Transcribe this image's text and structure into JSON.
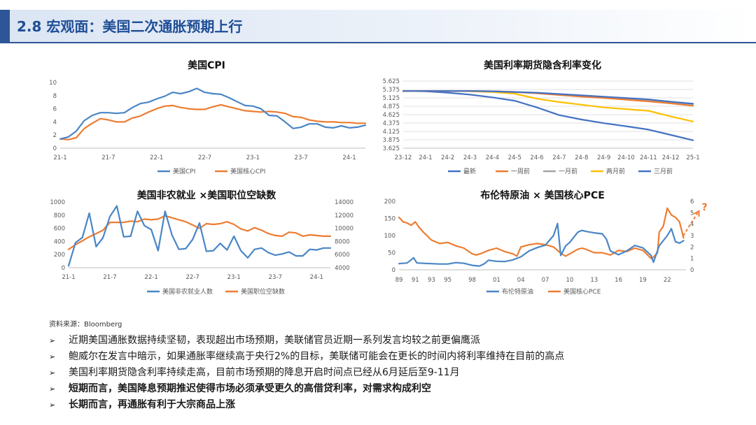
{
  "header": {
    "title": "2.8 宏观面：美国二次通胀预期上行",
    "accent": "#2e5597"
  },
  "colors": {
    "blue": "#4a86c5",
    "orange": "#ed7d31",
    "gray": "#a5a5a5",
    "yellow": "#ffc000",
    "navy": "#4472c4"
  },
  "chart_data": [
    {
      "type": "line",
      "title": "美国CPI",
      "x": [
        "2021-01",
        "2021-02",
        "2021-03",
        "2021-04",
        "2021-05",
        "2021-06",
        "2021-07",
        "2021-08",
        "2021-09",
        "2021-10",
        "2021-11",
        "2021-12",
        "2022-01",
        "2022-02",
        "2022-03",
        "2022-04",
        "2022-05",
        "2022-06",
        "2022-07",
        "2022-08",
        "2022-09",
        "2022-10",
        "2022-11",
        "2022-12",
        "2023-01",
        "2023-02",
        "2023-03",
        "2023-04",
        "2023-05",
        "2023-06",
        "2023-07",
        "2023-08",
        "2023-09",
        "2023-10",
        "2023-11",
        "2023-12",
        "2024-01",
        "2024-02",
        "2024-03"
      ],
      "xticks": [
        {
          "x": "2021-01",
          "label": "21-1"
        },
        {
          "x": "2021-07",
          "label": "21-7"
        },
        {
          "x": "2022-01",
          "label": "22-1"
        },
        {
          "x": "2022-07",
          "label": "22-7"
        },
        {
          "x": "2023-01",
          "label": "23-1"
        },
        {
          "x": "2023-07",
          "label": "23-7"
        },
        {
          "x": "2024-01",
          "label": "24-1"
        }
      ],
      "ylim": [
        0,
        10
      ],
      "yticks": [
        "0",
        "2",
        "4",
        "6",
        "8",
        "10"
      ],
      "series": [
        {
          "name": "美国CPI",
          "color": "#4a86c5",
          "values": [
            1.4,
            1.7,
            2.6,
            4.2,
            5.0,
            5.4,
            5.4,
            5.3,
            5.4,
            6.2,
            6.8,
            7.0,
            7.5,
            7.9,
            8.5,
            8.3,
            8.6,
            9.1,
            8.5,
            8.3,
            8.2,
            7.7,
            7.1,
            6.5,
            6.4,
            6.0,
            5.0,
            4.9,
            4.0,
            3.0,
            3.2,
            3.7,
            3.7,
            3.2,
            3.1,
            3.4,
            3.1,
            3.2,
            3.5
          ]
        },
        {
          "name": "美国核心CPI",
          "color": "#ed7d31",
          "values": [
            1.4,
            1.3,
            1.6,
            3.0,
            3.8,
            4.5,
            4.3,
            4.0,
            4.0,
            4.6,
            4.9,
            5.5,
            6.0,
            6.4,
            6.5,
            6.2,
            6.0,
            5.9,
            5.9,
            6.3,
            6.6,
            6.3,
            6.0,
            5.7,
            5.6,
            5.5,
            5.6,
            5.5,
            5.3,
            4.8,
            4.7,
            4.3,
            4.1,
            4.0,
            4.0,
            3.9,
            3.9,
            3.8,
            3.8
          ]
        }
      ]
    },
    {
      "type": "line",
      "title": "美国利率期货隐含利率变化",
      "x": [
        "23-12",
        "24-1",
        "24-2",
        "24-3",
        "24-4",
        "24-5",
        "24-6",
        "24-7",
        "24-8",
        "24-9",
        "24-10",
        "24-11",
        "24-12",
        "25-1"
      ],
      "ylim": [
        3.625,
        5.625
      ],
      "yticks": [
        "3.625",
        "3.875",
        "4.125",
        "4.375",
        "4.625",
        "4.875",
        "5.125",
        "5.375",
        "5.625"
      ],
      "series": [
        {
          "name": "最新",
          "color": "#4472c4",
          "values": [
            5.33,
            5.33,
            5.33,
            5.33,
            5.32,
            5.3,
            5.28,
            5.24,
            5.2,
            5.16,
            5.12,
            5.08,
            5.01,
            4.95
          ]
        },
        {
          "name": "一周前",
          "color": "#ed7d31",
          "values": [
            5.33,
            5.33,
            5.33,
            5.33,
            5.32,
            5.3,
            5.26,
            5.21,
            5.16,
            5.12,
            5.07,
            5.02,
            4.96,
            4.89
          ]
        },
        {
          "name": "一月前",
          "color": "#a5a5a5",
          "values": [
            5.33,
            5.33,
            5.33,
            5.33,
            5.32,
            5.3,
            5.27,
            5.22,
            5.18,
            5.14,
            5.1,
            5.06,
            5.0,
            4.94
          ]
        },
        {
          "name": "两月前",
          "color": "#ffc000",
          "values": [
            5.33,
            5.33,
            5.33,
            5.32,
            5.3,
            5.25,
            5.1,
            5.0,
            4.92,
            4.84,
            4.79,
            4.74,
            4.57,
            4.42
          ]
        },
        {
          "name": "三月前",
          "color": "#4472c4",
          "values": [
            5.33,
            5.32,
            5.28,
            5.22,
            5.14,
            5.04,
            4.84,
            4.61,
            4.48,
            4.37,
            4.28,
            4.18,
            4.02,
            3.86
          ]
        }
      ]
    },
    {
      "type": "line",
      "title": "美国非农就业 ×美国职位空缺数",
      "x": [
        "2021-01",
        "2021-02",
        "2021-03",
        "2021-04",
        "2021-05",
        "2021-06",
        "2021-07",
        "2021-08",
        "2021-09",
        "2021-10",
        "2021-11",
        "2021-12",
        "2022-01",
        "2022-02",
        "2022-03",
        "2022-04",
        "2022-05",
        "2022-06",
        "2022-07",
        "2022-08",
        "2022-09",
        "2022-10",
        "2022-11",
        "2022-12",
        "2023-01",
        "2023-02",
        "2023-03",
        "2023-04",
        "2023-05",
        "2023-06",
        "2023-07",
        "2023-08",
        "2023-09",
        "2023-10",
        "2023-11",
        "2023-12",
        "2024-01",
        "2024-02",
        "2024-03"
      ],
      "xticks": [
        {
          "x": "2021-01",
          "label": "21-1"
        },
        {
          "x": "2021-07",
          "label": "21-7"
        },
        {
          "x": "2022-01",
          "label": "22-1"
        },
        {
          "x": "2022-07",
          "label": "22-7"
        },
        {
          "x": "2023-01",
          "label": "23-1"
        },
        {
          "x": "2023-07",
          "label": "23-7"
        },
        {
          "x": "2024-01",
          "label": "24-1"
        }
      ],
      "ylim": [
        0,
        1000
      ],
      "yticks": [
        "0",
        "200",
        "400",
        "600",
        "800",
        "1000"
      ],
      "ylim_right": [
        4000,
        14000
      ],
      "yticks_right": [
        "4000",
        "6000",
        "8000",
        "10000",
        "12000",
        "14000"
      ],
      "series": [
        {
          "name": "美国非农就业人数",
          "color": "#4a86c5",
          "axis": "left",
          "values": [
            30,
            380,
            460,
            830,
            320,
            460,
            780,
            940,
            470,
            480,
            860,
            640,
            580,
            260,
            860,
            500,
            280,
            290,
            430,
            680,
            250,
            260,
            370,
            270,
            480,
            260,
            150,
            280,
            300,
            230,
            190,
            210,
            240,
            180,
            180,
            280,
            270,
            300,
            300
          ]
        },
        {
          "name": "美国职位空缺数",
          "color": "#ed7d31",
          "axis": "right",
          "values": [
            6800,
            7500,
            8100,
            8700,
            9200,
            9700,
            10900,
            10900,
            10900,
            11100,
            11000,
            11400,
            11300,
            11400,
            11900,
            11600,
            11300,
            11000,
            10500,
            10000,
            10700,
            10600,
            10700,
            11000,
            10600,
            9900,
            9600,
            10100,
            9700,
            9200,
            8900,
            8800,
            9400,
            9300,
            8800,
            9000,
            8900,
            8800,
            8800
          ]
        }
      ]
    },
    {
      "type": "line",
      "title": "布伦特原油 × 美国核心PCE",
      "xticks": [
        "89",
        "91",
        "93",
        "95",
        "98",
        "01",
        "04",
        "07",
        "10",
        "13",
        "16",
        "19",
        "22"
      ],
      "ylim": [
        0,
        200
      ],
      "yticks": [
        "0",
        "50",
        "100",
        "150",
        "200"
      ],
      "ylim_right": [
        0,
        6
      ],
      "yticks_right": [
        "0",
        "1",
        "2",
        "3",
        "4",
        "5",
        "6"
      ],
      "annotation": "?",
      "series": [
        {
          "name": "布伦特原油",
          "color": "#4a86c5",
          "axis": "left",
          "x": [
            1989,
            1990,
            1990.8,
            1991.2,
            1992,
            1993,
            1994,
            1995,
            1996,
            1997,
            1998,
            1998.9,
            1999.5,
            2000,
            2001,
            2002,
            2003,
            2004,
            2005,
            2006,
            2007,
            2008.0,
            2008.5,
            2008.9,
            2009.5,
            2010,
            2011,
            2011.5,
            2012,
            2013,
            2014,
            2014.5,
            2015,
            2016,
            2017,
            2018,
            2019,
            2020,
            2020.3,
            2021,
            2022,
            2022.5,
            2023,
            2023.5,
            2024
          ],
          "values": [
            18,
            20,
            35,
            20,
            19,
            18,
            17,
            17,
            21,
            19,
            13,
            11,
            18,
            28,
            25,
            24,
            29,
            38,
            55,
            65,
            72,
            100,
            135,
            42,
            70,
            80,
            110,
            115,
            112,
            108,
            105,
            90,
            55,
            44,
            55,
            71,
            64,
            42,
            22,
            70,
            100,
            120,
            82,
            78,
            85
          ]
        },
        {
          "name": "美国核心PCE",
          "color": "#ed7d31",
          "axis": "right",
          "x": [
            1989,
            1989.5,
            1990,
            1990.5,
            1991,
            1991.5,
            1992,
            1993,
            1994,
            1995,
            1996,
            1997,
            1998,
            1998.5,
            1999,
            2000,
            2001,
            2002,
            2003,
            2003.5,
            2004,
            2005,
            2006,
            2007,
            2008,
            2009,
            2009.5,
            2010,
            2011,
            2011.5,
            2012,
            2013,
            2014,
            2015,
            2016,
            2017,
            2018,
            2019,
            2020,
            2020.3,
            2020.8,
            2021,
            2021.5,
            2022,
            2022.5,
            2023,
            2023.5,
            2024
          ],
          "values": [
            4.6,
            4.2,
            4.1,
            3.9,
            4.2,
            3.7,
            3.3,
            2.6,
            2.3,
            2.4,
            2.1,
            1.9,
            1.4,
            1.3,
            1.4,
            1.7,
            1.9,
            1.6,
            1.4,
            1.2,
            2.0,
            2.2,
            2.3,
            2.2,
            2.0,
            1.4,
            1.2,
            1.4,
            1.8,
            1.9,
            1.8,
            1.5,
            1.5,
            1.3,
            1.7,
            1.6,
            1.9,
            1.7,
            1.0,
            1.1,
            1.5,
            3.3,
            3.8,
            5.4,
            4.8,
            4.6,
            4.2,
            2.8
          ]
        }
      ]
    }
  ],
  "source": "资料来源：Bloomberg",
  "bullets": [
    {
      "text": "近期美国通胀数据持续坚韧，表现超出市场预期，美联储官员近期一系列发言均较之前更偏鹰派",
      "bold": false
    },
    {
      "text": "鲍威尔在发言中暗示，如果通胀率继续高于央行2%的目标，美联储可能会在更长的时间内将利率维持在目前的高点",
      "bold": false
    },
    {
      "text": "美国利率期货隐含利率持续走高，目前市场预期的降息开启时间点已经从6月延后至9-11月",
      "bold": false
    },
    {
      "text": "短期而言，美国降息预期推迟使得市场必须承受更久的高借贷利率，对需求构成利空",
      "bold": true
    },
    {
      "text": "长期而言，再通胀有利于大宗商品上涨",
      "bold": true
    }
  ]
}
